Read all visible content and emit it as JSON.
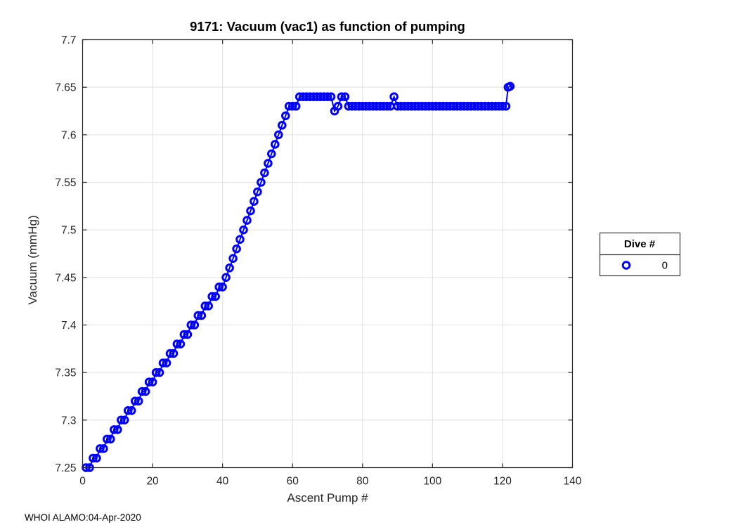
{
  "figure": {
    "title": "9171: Vacuum (vac1) as function of pumping",
    "xlabel": "Ascent Pump #",
    "ylabel": "Vacuum (mmHg)",
    "footer": "WHOI ALAMO:04-Apr-2020"
  },
  "legend": {
    "header": "Dive #",
    "items": [
      {
        "label": "0",
        "marker": "hollow-circle",
        "color": "#0000ff"
      }
    ],
    "position": "right-outside"
  },
  "colors": {
    "marker": "#0000ff",
    "grid": "#e0e0e0",
    "axis": "#262626",
    "tick_text": "#262626",
    "title_text": "#000000",
    "background": "#ffffff"
  },
  "chart_data": {
    "type": "scatter",
    "marker": "hollow-circle",
    "line_connected": true,
    "grid": true,
    "title": "9171: Vacuum (vac1) as function of pumping",
    "xlabel": "Ascent Pump #",
    "ylabel": "Vacuum (mmHg)",
    "xlim": [
      0,
      140
    ],
    "ylim": [
      7.25,
      7.7
    ],
    "xticks": [
      0,
      20,
      40,
      60,
      80,
      100,
      120,
      140
    ],
    "xtick_labels": [
      "0",
      "20",
      "40",
      "60",
      "80",
      "100",
      "120",
      "140"
    ],
    "yticks": [
      7.25,
      7.3,
      7.35,
      7.4,
      7.45,
      7.5,
      7.55,
      7.6,
      7.65,
      7.7
    ],
    "ytick_labels": [
      "7.25",
      "7.3",
      "7.35",
      "7.4",
      "7.45",
      "7.5",
      "7.55",
      "7.6",
      "7.65",
      "7.7"
    ],
    "legend_position": "right-outside",
    "series": [
      {
        "name": "0",
        "points": [
          [
            1,
            7.25
          ],
          [
            2,
            7.25
          ],
          [
            3,
            7.26
          ],
          [
            4,
            7.26
          ],
          [
            5,
            7.27
          ],
          [
            6,
            7.27
          ],
          [
            7,
            7.28
          ],
          [
            8,
            7.28
          ],
          [
            9,
            7.29
          ],
          [
            10,
            7.29
          ],
          [
            11,
            7.3
          ],
          [
            12,
            7.3
          ],
          [
            13,
            7.31
          ],
          [
            14,
            7.31
          ],
          [
            15,
            7.32
          ],
          [
            16,
            7.32
          ],
          [
            17,
            7.33
          ],
          [
            18,
            7.33
          ],
          [
            19,
            7.34
          ],
          [
            20,
            7.34
          ],
          [
            21,
            7.35
          ],
          [
            22,
            7.35
          ],
          [
            23,
            7.36
          ],
          [
            24,
            7.36
          ],
          [
            25,
            7.37
          ],
          [
            26,
            7.37
          ],
          [
            27,
            7.38
          ],
          [
            28,
            7.38
          ],
          [
            29,
            7.39
          ],
          [
            30,
            7.39
          ],
          [
            31,
            7.4
          ],
          [
            32,
            7.4
          ],
          [
            33,
            7.41
          ],
          [
            34,
            7.41
          ],
          [
            35,
            7.42
          ],
          [
            36,
            7.42
          ],
          [
            37,
            7.43
          ],
          [
            38,
            7.43
          ],
          [
            39,
            7.44
          ],
          [
            40,
            7.44
          ],
          [
            41,
            7.45
          ],
          [
            42,
            7.46
          ],
          [
            43,
            7.47
          ],
          [
            44,
            7.48
          ],
          [
            45,
            7.49
          ],
          [
            46,
            7.5
          ],
          [
            47,
            7.51
          ],
          [
            48,
            7.52
          ],
          [
            49,
            7.53
          ],
          [
            50,
            7.54
          ],
          [
            51,
            7.55
          ],
          [
            52,
            7.56
          ],
          [
            53,
            7.57
          ],
          [
            54,
            7.58
          ],
          [
            55,
            7.59
          ],
          [
            56,
            7.6
          ],
          [
            57,
            7.61
          ],
          [
            58,
            7.62
          ],
          [
            59,
            7.63
          ],
          [
            60,
            7.63
          ],
          [
            61,
            7.63
          ],
          [
            62,
            7.64
          ],
          [
            63,
            7.64
          ],
          [
            64,
            7.64
          ],
          [
            65,
            7.64
          ],
          [
            66,
            7.64
          ],
          [
            67,
            7.64
          ],
          [
            68,
            7.64
          ],
          [
            69,
            7.64
          ],
          [
            70,
            7.64
          ],
          [
            71,
            7.64
          ],
          [
            72,
            7.625
          ],
          [
            73,
            7.63
          ],
          [
            74,
            7.64
          ],
          [
            75,
            7.64
          ],
          [
            76,
            7.63
          ],
          [
            77,
            7.63
          ],
          [
            78,
            7.63
          ],
          [
            79,
            7.63
          ],
          [
            80,
            7.63
          ],
          [
            81,
            7.63
          ],
          [
            82,
            7.63
          ],
          [
            83,
            7.63
          ],
          [
            84,
            7.63
          ],
          [
            85,
            7.63
          ],
          [
            86,
            7.63
          ],
          [
            87,
            7.63
          ],
          [
            88,
            7.63
          ],
          [
            89,
            7.64
          ],
          [
            90,
            7.63
          ],
          [
            91,
            7.63
          ],
          [
            92,
            7.63
          ],
          [
            93,
            7.63
          ],
          [
            94,
            7.63
          ],
          [
            95,
            7.63
          ],
          [
            96,
            7.63
          ],
          [
            97,
            7.63
          ],
          [
            98,
            7.63
          ],
          [
            99,
            7.63
          ],
          [
            100,
            7.63
          ],
          [
            101,
            7.63
          ],
          [
            102,
            7.63
          ],
          [
            103,
            7.63
          ],
          [
            104,
            7.63
          ],
          [
            105,
            7.63
          ],
          [
            106,
            7.63
          ],
          [
            107,
            7.63
          ],
          [
            108,
            7.63
          ],
          [
            109,
            7.63
          ],
          [
            110,
            7.63
          ],
          [
            111,
            7.63
          ],
          [
            112,
            7.63
          ],
          [
            113,
            7.63
          ],
          [
            114,
            7.63
          ],
          [
            115,
            7.63
          ],
          [
            116,
            7.63
          ],
          [
            117,
            7.63
          ],
          [
            118,
            7.63
          ],
          [
            119,
            7.63
          ],
          [
            120,
            7.63
          ],
          [
            121,
            7.63
          ],
          [
            121.6,
            7.65
          ],
          [
            122.2,
            7.651
          ]
        ]
      }
    ]
  }
}
